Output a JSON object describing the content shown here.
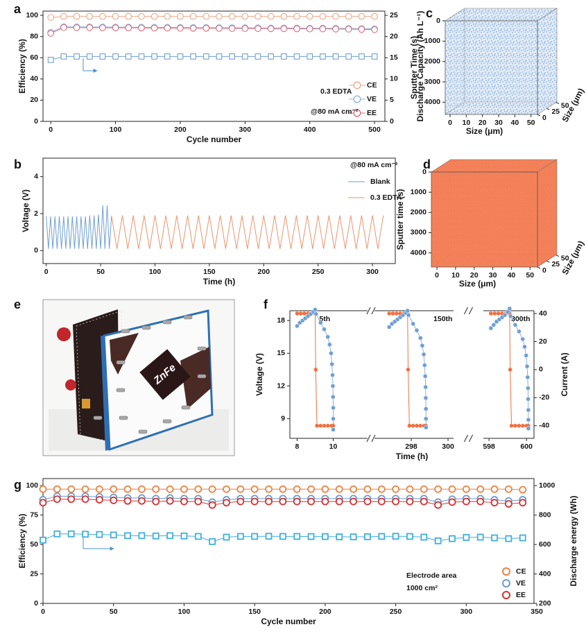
{
  "chart_data": [
    {
      "label": "a",
      "type": "scatter-line",
      "x_label": "Cycle number",
      "y_label": "Efficiency (%)",
      "y2_label": "Discharge Capacity (Ah L⁻¹)",
      "xlim": [
        -12,
        516
      ],
      "xticks": [
        0,
        100,
        200,
        300,
        400,
        500
      ],
      "ylim": [
        0,
        104
      ],
      "yticks": [
        0,
        20,
        40,
        60,
        80,
        100
      ],
      "y2lim": [
        0,
        26
      ],
      "y2ticks": [
        0,
        5,
        10,
        15,
        20,
        25
      ],
      "annotations": [
        "0.3 EDTA",
        "@80 mA cm⁻²"
      ],
      "legend": "lower right",
      "x": [
        0,
        20,
        40,
        60,
        80,
        100,
        120,
        140,
        160,
        180,
        200,
        220,
        240,
        260,
        280,
        300,
        320,
        340,
        360,
        380,
        400,
        420,
        440,
        460,
        480,
        500
      ],
      "series": [
        {
          "name": "CE",
          "color": "#f2a583",
          "marker": "circle",
          "values": [
            98,
            99,
            99,
            99,
            99,
            99,
            99,
            99,
            99,
            99,
            99,
            99,
            99,
            99,
            99,
            99,
            99,
            99,
            99,
            99,
            99,
            99,
            99,
            99,
            99,
            99
          ]
        },
        {
          "name": "VE",
          "color": "#8fb4dc",
          "marker": "circle",
          "values": [
            84,
            89.2,
            89.1,
            89.1,
            89,
            88.9,
            88.9,
            88.8,
            88.7,
            88.7,
            88.6,
            88.5,
            88.5,
            88.4,
            88.3,
            88.3,
            88.2,
            88.1,
            88.1,
            88,
            87.9,
            87.9,
            87.8,
            87.7,
            87.5,
            87.2
          ]
        },
        {
          "name": "EE",
          "color": "#dc6b7a",
          "marker": "circle",
          "values": [
            83,
            88.5,
            88.4,
            88.4,
            88.3,
            88.2,
            88.2,
            88.1,
            88,
            88,
            87.9,
            87.8,
            87.8,
            87.7,
            87.6,
            87.6,
            87.5,
            87.4,
            87.4,
            87.3,
            87.2,
            87.2,
            87.1,
            87,
            86.8,
            86.5
          ]
        },
        {
          "color": "#6f9fd3",
          "marker": "square",
          "axis": "y2",
          "values": [
            14.5,
            15.3,
            15.3,
            15.3,
            15.3,
            15.3,
            15.3,
            15.3,
            15.3,
            15.3,
            15.3,
            15.3,
            15.3,
            15.3,
            15.3,
            15.3,
            15.3,
            15.3,
            15.3,
            15.3,
            15.3,
            15.3,
            15.3,
            15.3,
            15.3,
            15.3
          ]
        }
      ]
    },
    {
      "label": "b",
      "type": "line",
      "x_label": "Time (h)",
      "y_label": "Voltage (V)",
      "xlim": [
        -3,
        321
      ],
      "xticks": [
        0,
        50,
        100,
        150,
        200,
        250,
        300
      ],
      "ylim": [
        -0.7,
        5
      ],
      "yticks": [
        0,
        2,
        4
      ],
      "annotations": [
        "@80 mA cm⁻²"
      ],
      "legend": "upper right",
      "series": [
        {
          "name": "Blank",
          "color": "#6f9fd3",
          "x": [
            0,
            2,
            4,
            6,
            8,
            10,
            12,
            14,
            16,
            18,
            20,
            22,
            24,
            26,
            28,
            30,
            32,
            34,
            36,
            38,
            40,
            42,
            44,
            46,
            48,
            50,
            52,
            54,
            56,
            58,
            60
          ],
          "values": [
            1.85,
            0.1,
            1.85,
            0.1,
            1.85,
            0.1,
            1.85,
            0.1,
            1.85,
            0.1,
            1.85,
            0.1,
            1.85,
            0.1,
            1.85,
            0.1,
            1.85,
            0.1,
            1.85,
            0.1,
            1.9,
            0.1,
            1.9,
            0.1,
            1.95,
            0.1,
            2.45,
            0.1,
            2.45,
            0.1,
            1.85
          ]
        },
        {
          "name": "0.3 EDTA",
          "color": "#f0906a",
          "x": [
            60,
            65,
            70,
            75,
            80,
            85,
            90,
            95,
            100,
            105,
            110,
            115,
            120,
            125,
            130,
            135,
            140,
            145,
            150,
            155,
            160,
            165,
            170,
            175,
            180,
            185,
            190,
            195,
            200,
            205,
            210,
            215,
            220,
            225,
            230,
            235,
            240,
            245,
            250,
            255,
            260,
            265,
            270,
            275,
            280,
            285,
            290,
            295,
            300,
            305,
            310
          ],
          "values": [
            1.9,
            0.1,
            1.9,
            0.1,
            1.9,
            0.1,
            1.9,
            0.1,
            1.9,
            0.1,
            1.9,
            0.1,
            1.9,
            0.1,
            1.9,
            0.1,
            1.9,
            0.1,
            1.9,
            0.1,
            1.9,
            0.1,
            1.9,
            0.1,
            1.9,
            0.1,
            1.9,
            0.1,
            1.9,
            0.1,
            1.9,
            0.1,
            1.9,
            0.1,
            1.9,
            0.1,
            1.9,
            0.1,
            1.9,
            0.1,
            1.9,
            0.1,
            1.9,
            0.1,
            1.9,
            0.1,
            1.9,
            0.1,
            1.9,
            0.1,
            1.9
          ]
        }
      ]
    },
    {
      "label": "c",
      "type": "volume",
      "color": "#5b8fcf",
      "fill_opacity": 0.18,
      "x_label": "Size (μm)",
      "y_label": "Sputter Time (s)",
      "z_label": "Size (μm)",
      "xlim": [
        -3,
        54
      ],
      "xticks": [
        0,
        10,
        20,
        30,
        40,
        50
      ],
      "ylim": [
        0,
        4600
      ],
      "yticks": [
        0,
        1000,
        2000,
        3000,
        4000
      ],
      "y_reversed": true,
      "zlim": [
        0,
        52
      ],
      "zticks": [
        0,
        25,
        50
      ]
    },
    {
      "label": "d",
      "type": "volume",
      "color": "#f27a50",
      "fill_opacity": 0.95,
      "x_label": "Size (μm)",
      "y_label": "Sputter time (s)",
      "z_label": "Size (μm)",
      "xlim": [
        -3,
        54
      ],
      "xticks": [
        0,
        10,
        20,
        30,
        40,
        50
      ],
      "ylim": [
        0,
        4700
      ],
      "yticks": [
        0,
        1000,
        2000,
        3000,
        4000
      ],
      "y_reversed": true,
      "zlim": [
        0,
        52
      ],
      "zticks": [
        0,
        25,
        50
      ]
    },
    {
      "label": "e",
      "type": "photo",
      "logo": "ZnFe"
    },
    {
      "label": "f",
      "type": "broken-line",
      "x_label": "Time (h)",
      "y_label": "Voltage (V)",
      "y2_label": "Current (A)",
      "ylim": [
        7.2,
        18.9
      ],
      "yticks": [
        9,
        12,
        15,
        18
      ],
      "y2lim": [
        -49,
        42
      ],
      "y2ticks": [
        -40,
        -20,
        0,
        20,
        40
      ],
      "voltage_color": "#6f9fd3",
      "current_color": "#f07040",
      "segments": [
        {
          "label": "5th",
          "xlim": [
            7.6,
            11.9
          ],
          "xticks": [
            8,
            10
          ],
          "voltage": {
            "x": [
              8.0,
              8.15,
              8.3,
              8.45,
              8.6,
              8.75,
              8.9,
              9.0,
              9.05,
              9.3,
              9.5,
              9.7,
              9.8,
              9.88,
              9.93,
              9.96,
              9.98,
              9.99,
              10.0,
              10.0,
              10.0
            ],
            "values": [
              17.5,
              17.8,
              18.0,
              18.2,
              18.4,
              18.6,
              18.8,
              19.0,
              18.6,
              17.8,
              17.2,
              16.5,
              15.8,
              15.0,
              14.0,
              13.0,
              12.0,
              11.0,
              10.0,
              9.0,
              8.0
            ]
          },
          "current": {
            "x": [
              8.0,
              8.2,
              8.4,
              8.6,
              8.8,
              9.0,
              9.03,
              9.1,
              9.3,
              9.5,
              9.7,
              9.9,
              10.0
            ],
            "values": [
              40,
              40,
              40,
              40,
              40,
              40,
              0,
              -40,
              -40,
              -40,
              -40,
              -40,
              -40
            ]
          }
        },
        {
          "label": "150th",
          "xlim": [
            296,
            300.3
          ],
          "xticks": [
            298,
            300
          ],
          "voltage": {
            "x": [
              296.8,
              296.95,
              297.1,
              297.25,
              297.4,
              297.55,
              297.7,
              297.8,
              297.85,
              298.1,
              298.3,
              298.5,
              298.6,
              298.68,
              298.73,
              298.76,
              298.78,
              298.79,
              298.8,
              298.8,
              298.8
            ],
            "values": [
              17.4,
              17.7,
              17.9,
              18.1,
              18.3,
              18.5,
              18.7,
              18.9,
              18.5,
              17.7,
              17.1,
              16.4,
              15.7,
              14.9,
              13.9,
              12.9,
              11.9,
              10.9,
              9.9,
              9.0,
              8.2
            ]
          },
          "current": {
            "x": [
              296.8,
              297.0,
              297.2,
              297.4,
              297.6,
              297.8,
              297.83,
              297.9,
              298.1,
              298.3,
              298.5,
              298.7,
              298.8
            ],
            "values": [
              40,
              40,
              40,
              40,
              40,
              40,
              0,
              -40,
              -40,
              -40,
              -40,
              -40,
              -40
            ]
          }
        },
        {
          "label": "300th",
          "xlim": [
            597.7,
            600.4
          ],
          "xticks": [
            598,
            600
          ],
          "voltage": {
            "x": [
              598.1,
              598.25,
              598.4,
              598.55,
              598.7,
              598.85,
              599.0,
              599.1,
              599.15,
              599.4,
              599.6,
              599.8,
              599.9,
              599.98,
              600.03,
              600.06,
              600.08,
              600.09,
              600.1,
              600.1,
              600.1
            ],
            "values": [
              17.3,
              17.6,
              17.9,
              18.1,
              18.3,
              18.5,
              18.8,
              19.1,
              18.4,
              17.6,
              17.0,
              16.3,
              15.6,
              14.8,
              13.8,
              12.8,
              11.8,
              10.8,
              9.8,
              8.9,
              8.1
            ]
          },
          "current": {
            "x": [
              598.1,
              598.3,
              598.5,
              598.7,
              598.9,
              599.1,
              599.13,
              599.2,
              599.4,
              599.6,
              599.8,
              600.0,
              600.1
            ],
            "values": [
              40,
              40,
              40,
              40,
              40,
              40,
              0,
              -40,
              -40,
              -40,
              -40,
              -40,
              -40
            ]
          }
        }
      ]
    },
    {
      "label": "g",
      "type": "scatter-line",
      "x_label": "Cycle number",
      "y_label": "Efficiency (%)",
      "y2_label": "Discharge energy (Wh)",
      "xlim": [
        0,
        348
      ],
      "xticks": [
        0,
        50,
        100,
        150,
        200,
        250,
        300,
        350
      ],
      "ylim": [
        0,
        106
      ],
      "yticks": [
        0,
        25,
        50,
        75,
        100
      ],
      "y2lim": [
        200,
        1048
      ],
      "y2ticks": [
        200,
        400,
        600,
        800,
        1000
      ],
      "annotations": [
        "Electrode area",
        "1000 cm²"
      ],
      "legend": "lower right",
      "x": [
        0,
        10,
        20,
        30,
        40,
        50,
        60,
        70,
        80,
        90,
        100,
        110,
        120,
        130,
        140,
        150,
        160,
        170,
        180,
        190,
        200,
        210,
        220,
        230,
        240,
        250,
        260,
        270,
        280,
        290,
        300,
        310,
        320,
        330,
        340
      ],
      "series": [
        {
          "name": "CE",
          "color": "#f08040",
          "marker": "circle",
          "values": [
            97,
            97,
            97,
            97,
            97,
            97,
            97,
            97,
            97,
            97,
            97,
            97,
            97,
            97,
            97,
            97,
            97,
            97,
            97,
            97,
            97,
            97,
            97,
            97,
            97,
            97,
            97,
            97,
            97,
            97,
            97,
            97,
            97,
            97,
            96.5
          ]
        },
        {
          "name": "VE",
          "color": "#6a9ad0",
          "marker": "circle",
          "values": [
            88,
            91,
            91,
            91,
            90.5,
            90,
            89.5,
            89.5,
            89,
            89.5,
            89,
            89,
            86,
            88,
            89,
            89,
            89,
            89,
            89,
            89,
            89,
            89,
            89,
            89,
            89,
            89,
            89,
            89,
            86,
            88.5,
            89,
            89,
            88,
            87,
            88
          ]
        },
        {
          "name": "EE",
          "color": "#d83030",
          "marker": "circle",
          "values": [
            85.5,
            88.5,
            88.5,
            88.5,
            88,
            87.5,
            87,
            87,
            86.5,
            87,
            86.5,
            86.5,
            83.5,
            85.5,
            86.5,
            86.5,
            86.5,
            86.5,
            86.5,
            86.5,
            86.5,
            86.5,
            86.5,
            86.5,
            86.5,
            86.5,
            86.5,
            86.5,
            83.5,
            86,
            86.5,
            86.5,
            85.5,
            84.5,
            85.5
          ]
        },
        {
          "color": "#3eaee0",
          "marker": "square",
          "axis": "y2",
          "values": [
            630,
            672,
            672,
            670,
            668,
            665,
            660,
            660,
            658,
            660,
            658,
            655,
            620,
            650,
            655,
            655,
            656,
            655,
            655,
            654,
            654,
            652,
            652,
            653,
            655,
            656,
            655,
            650,
            625,
            640,
            648,
            650,
            645,
            640,
            645
          ]
        }
      ]
    }
  ]
}
